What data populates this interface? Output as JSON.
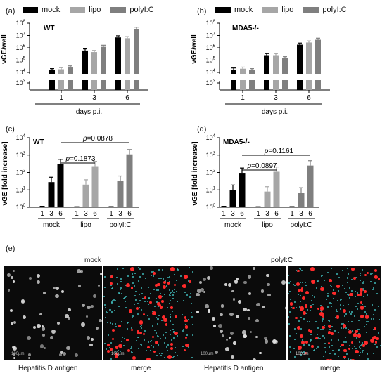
{
  "panels": {
    "a": {
      "label": "(a)",
      "group": "WT"
    },
    "b": {
      "label": "(b)",
      "group": "MDA5-/-"
    },
    "c": {
      "label": "(c)",
      "group": "WT"
    },
    "d": {
      "label": "(d)",
      "group": "MDA5-/-"
    },
    "e": {
      "label": "(e)"
    }
  },
  "legend": {
    "mock": "mock",
    "lipo": "lipo",
    "polyIC": "polyI:C"
  },
  "colors": {
    "mock": "#000000",
    "lipo": "#a6a6a6",
    "polyIC": "#7f7f7f"
  },
  "chart_data": [
    {
      "panel": "a",
      "type": "bar",
      "ylabel": "vGE/well",
      "xlabel": "days p.i.",
      "scale": "log",
      "ylim": [
        10000,
        100000000
      ],
      "broken_axis_tick": 1000,
      "categories": [
        "1",
        "3",
        "6"
      ],
      "series": [
        {
          "name": "mock",
          "values": [
            15000,
            600000,
            7000000
          ]
        },
        {
          "name": "lipo",
          "values": [
            18000,
            450000,
            6000000
          ]
        },
        {
          "name": "polyI:C",
          "values": [
            25000,
            1200000,
            35000000
          ]
        }
      ]
    },
    {
      "panel": "b",
      "type": "bar",
      "ylabel": "vGE/well",
      "xlabel": "days p.i.",
      "scale": "log",
      "ylim": [
        10000,
        100000000
      ],
      "broken_axis_tick": 1000,
      "categories": [
        "1",
        "3",
        "6"
      ],
      "series": [
        {
          "name": "mock",
          "values": [
            17000,
            250000,
            1800000
          ]
        },
        {
          "name": "lipo",
          "values": [
            20000,
            250000,
            2700000
          ]
        },
        {
          "name": "polyI:C",
          "values": [
            15000,
            140000,
            4500000
          ]
        }
      ]
    },
    {
      "panel": "c",
      "type": "bar",
      "ylabel": "vGE [fold increase]",
      "scale": "log",
      "ylim": [
        1,
        10000
      ],
      "groups": [
        "mock",
        "lipo",
        "polyI:C"
      ],
      "days": [
        "1",
        "3",
        "6"
      ],
      "values": [
        [
          1,
          28,
          300
        ],
        [
          1,
          20,
          230
        ],
        [
          1,
          33,
          1100
        ]
      ],
      "annotations": [
        {
          "text": "p=0.0878"
        },
        {
          "text": "p=0.1873"
        }
      ]
    },
    {
      "panel": "d",
      "type": "bar",
      "ylabel": "vGE [fold increase]",
      "scale": "log",
      "ylim": [
        1,
        10000
      ],
      "groups": [
        "mock",
        "lipo",
        "polyI:C"
      ],
      "days": [
        "1",
        "3",
        "6"
      ],
      "values": [
        [
          1,
          10,
          95
        ],
        [
          1,
          8,
          110
        ],
        [
          1,
          7,
          250
        ]
      ],
      "annotations": [
        {
          "text": "p=0.1161"
        },
        {
          "text": "p=0.0897"
        }
      ]
    }
  ],
  "microscopy": {
    "mock_title": "mock",
    "polyIC_title": "polyI:C",
    "left_caption": "Hepatitis D antigen",
    "right_caption": "merge",
    "scalebar": "100µm"
  }
}
